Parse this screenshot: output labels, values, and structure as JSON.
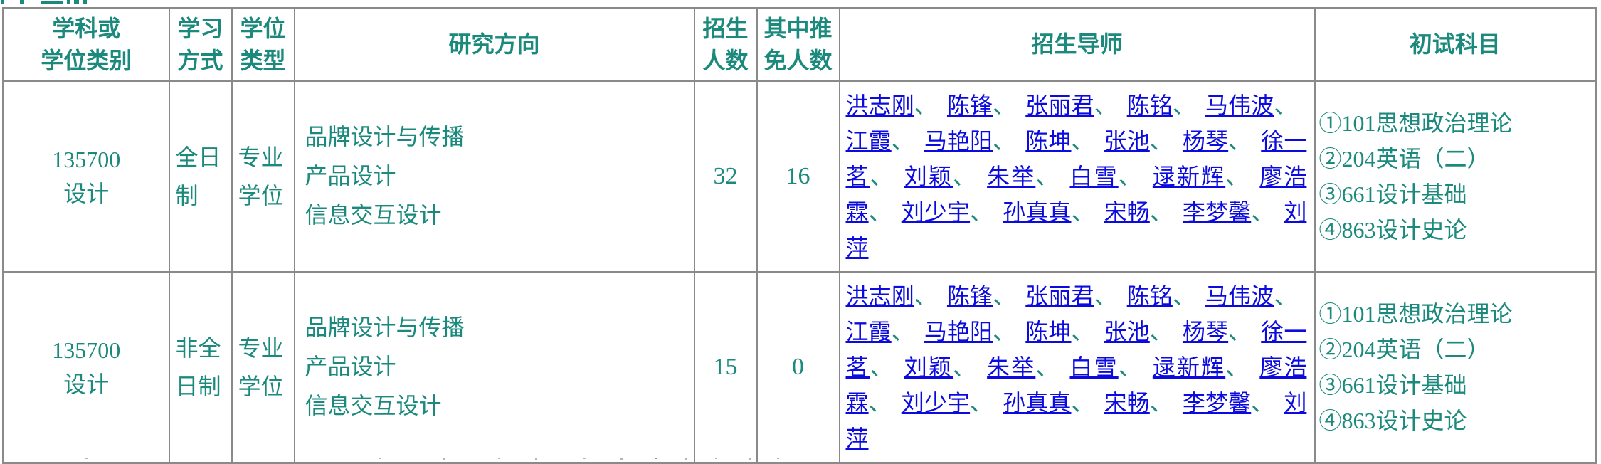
{
  "colors": {
    "heading_teal": "#1b8a7d",
    "link_blue": "#0b0be0",
    "table_border_gray": "#8a8a8a",
    "background": "#ffffff"
  },
  "table": {
    "headers": [
      {
        "id": "category",
        "lines": [
          "学科或",
          "学位类别"
        ]
      },
      {
        "id": "study_mode",
        "lines": [
          "学习",
          "方式"
        ]
      },
      {
        "id": "degree_type",
        "lines": [
          "学位",
          "类型"
        ]
      },
      {
        "id": "directions",
        "lines": [
          "研究方向"
        ]
      },
      {
        "id": "enroll",
        "lines": [
          "招生",
          "人数"
        ]
      },
      {
        "id": "exempt",
        "lines": [
          "其中推",
          "免人数"
        ]
      },
      {
        "id": "supervisors",
        "lines": [
          "招生导师"
        ]
      },
      {
        "id": "subjects",
        "lines": [
          "初试科目"
        ]
      }
    ],
    "rows": [
      {
        "category_code": "135700",
        "category_name": "设计",
        "study_mode": "全日制",
        "degree_type": "专业学位",
        "directions": [
          "品牌设计与传播",
          "产品设计",
          "信息交互设计"
        ],
        "enroll_count": "32",
        "exempt_count": "16",
        "supervisors": [
          "洪志刚",
          "陈锋",
          "张丽君",
          "陈铭",
          "马伟波",
          "江霞",
          "马艳阳",
          "陈坤",
          "张池",
          "杨琴",
          "徐一茗",
          "刘颖",
          "朱举",
          "白雪",
          "逯新辉",
          "廖浩霖",
          "刘少宇",
          "孙真真",
          "宋畅",
          "李梦馨",
          "刘萍"
        ],
        "exam_subjects": [
          "①101思想政治理论",
          "②204英语（二）",
          "③661设计基础",
          "④863设计史论"
        ]
      },
      {
        "category_code": "135700",
        "category_name": "设计",
        "study_mode": "非全日制",
        "degree_type": "专业学位",
        "directions": [
          "品牌设计与传播",
          "产品设计",
          "信息交互设计"
        ],
        "enroll_count": "15",
        "exempt_count": "0",
        "supervisors": [
          "洪志刚",
          "陈锋",
          "张丽君",
          "陈铭",
          "马伟波",
          "江霞",
          "马艳阳",
          "陈坤",
          "张池",
          "杨琴",
          "徐一茗",
          "刘颖",
          "朱举",
          "白雪",
          "逯新辉",
          "廖浩霖",
          "刘少宇",
          "孙真真",
          "宋畅",
          "李梦馨",
          "刘萍"
        ],
        "exam_subjects": [
          "①101思想政治理论",
          "②204英语（二）",
          "③661设计基础",
          "④863设计史论"
        ]
      }
    ]
  }
}
